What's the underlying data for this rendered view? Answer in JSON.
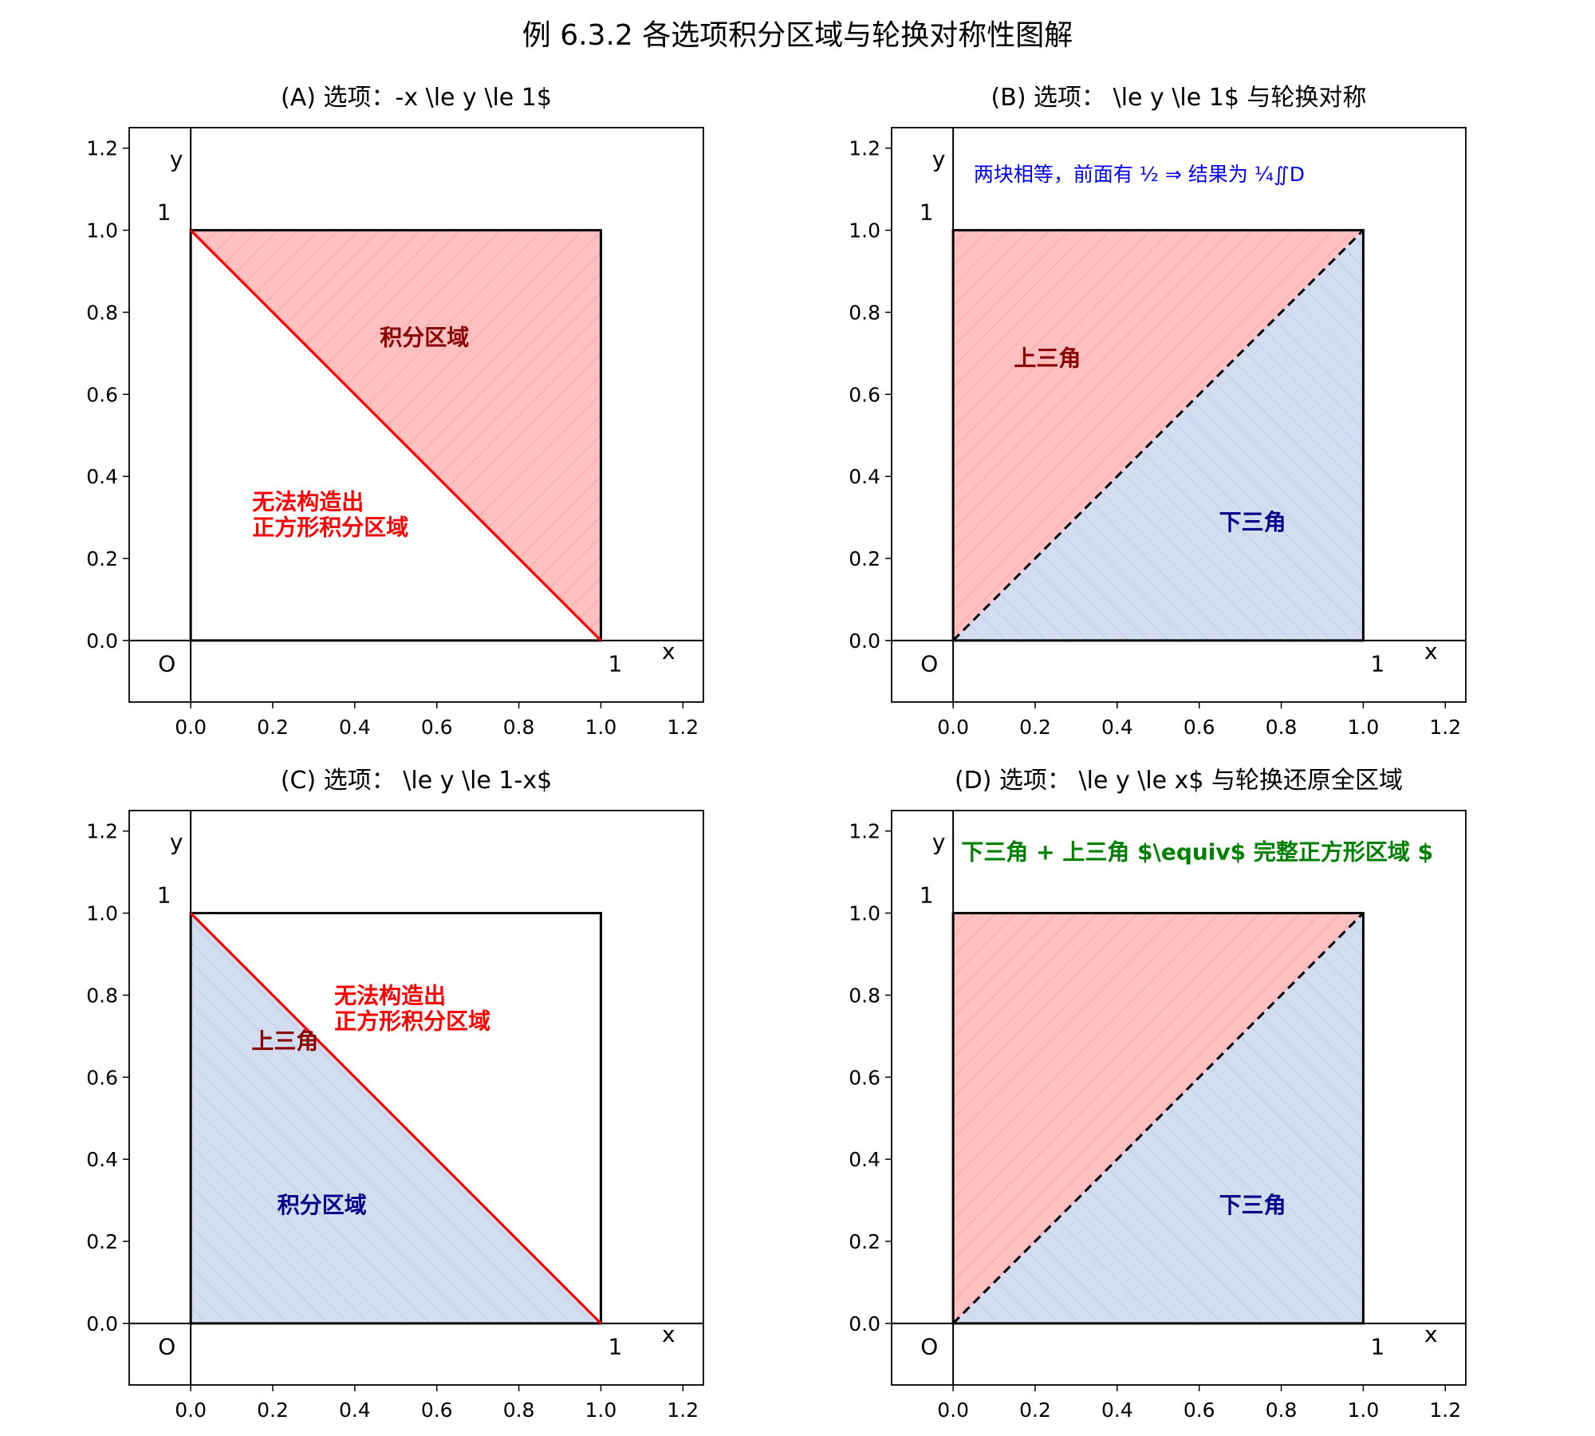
{
  "suptitle": "例 6.3.2 各选项积分区域与轮换对称性图解",
  "colors": {
    "red_fill": "#ffc0c0",
    "red_hatch": "#ff9a9a",
    "blue_fill": "#d2ddf0",
    "blue_hatch": "#b4c8ea",
    "red_line": "#ff0000",
    "black": "#000000",
    "dark_red": "#8b0000",
    "dark_blue": "#00008b",
    "red_text": "#ff0000",
    "blue_text": "#0000ff",
    "green_text": "#008000"
  },
  "chart_data": [
    {
      "id": "A",
      "type": "area",
      "title": "(A) 选项：-x \\le y \\le 1$",
      "xlim": [
        -0.15,
        1.25
      ],
      "ylim": [
        -0.15,
        1.25
      ],
      "xticks": [
        "0.0",
        "0.2",
        "0.4",
        "0.6",
        "0.8",
        "1.0",
        "1.2"
      ],
      "yticks": [
        "0.0",
        "0.2",
        "0.4",
        "0.6",
        "0.8",
        "1.0",
        "1.2"
      ],
      "axis_letters": {
        "x": "x",
        "y": "y",
        "origin": "O",
        "one_x": "1",
        "one_y": "1"
      },
      "regions": [
        {
          "name": "red-region",
          "style": "red",
          "points": [
            [
              0,
              1
            ],
            [
              1,
              1
            ],
            [
              1,
              0
            ]
          ]
        }
      ],
      "square": [
        [
          0,
          0
        ],
        [
          1,
          1
        ]
      ],
      "lines": [
        {
          "name": "antidiagonal-line",
          "style": "red",
          "from": [
            0,
            1
          ],
          "to": [
            1,
            0
          ]
        }
      ],
      "annotations": [
        {
          "text": "积分区域",
          "x": 0.57,
          "y": 0.72,
          "style": "dark_red"
        },
        {
          "lines": [
            "无法构造出",
            "正方形积分区域"
          ],
          "x": 0.15,
          "y": 0.32,
          "style": "red_left"
        }
      ]
    },
    {
      "id": "B",
      "type": "area",
      "title": "(B) 选项：  \\le y \\le 1$ 与轮换对称",
      "xlim": [
        -0.15,
        1.25
      ],
      "ylim": [
        -0.15,
        1.25
      ],
      "xticks": [
        "0.0",
        "0.2",
        "0.4",
        "0.6",
        "0.8",
        "1.0",
        "1.2"
      ],
      "yticks": [
        "0.0",
        "0.2",
        "0.4",
        "0.6",
        "0.8",
        "1.0",
        "1.2"
      ],
      "axis_letters": {
        "x": "x",
        "y": "y",
        "origin": "O",
        "one_x": "1",
        "one_y": "1"
      },
      "regions": [
        {
          "name": "upper-triangle-region",
          "style": "red",
          "points": [
            [
              0,
              0
            ],
            [
              0,
              1
            ],
            [
              1,
              1
            ]
          ]
        },
        {
          "name": "lower-triangle-region",
          "style": "blue",
          "points": [
            [
              0,
              0
            ],
            [
              1,
              0
            ],
            [
              1,
              1
            ]
          ]
        }
      ],
      "square": [
        [
          0,
          0
        ],
        [
          1,
          1
        ]
      ],
      "lines": [
        {
          "name": "diagonal-line",
          "style": "dashed",
          "from": [
            0,
            0
          ],
          "to": [
            1,
            1
          ]
        }
      ],
      "annotations": [
        {
          "text": "上三角",
          "x": 0.23,
          "y": 0.67,
          "style": "dark_red"
        },
        {
          "text": "下三角",
          "x": 0.73,
          "y": 0.27,
          "style": "dark_blue"
        },
        {
          "text": "两块相等，前面有 ½ ⇒ 结果为 ¼∬D",
          "x": 0.05,
          "y": 1.12,
          "style": "blue_left"
        }
      ]
    },
    {
      "id": "C",
      "type": "area",
      "title": "(C) 选项：  \\le y \\le 1-x$",
      "xlim": [
        -0.15,
        1.25
      ],
      "ylim": [
        -0.15,
        1.25
      ],
      "xticks": [
        "0.0",
        "0.2",
        "0.4",
        "0.6",
        "0.8",
        "1.0",
        "1.2"
      ],
      "yticks": [
        "0.0",
        "0.2",
        "0.4",
        "0.6",
        "0.8",
        "1.0",
        "1.2"
      ],
      "axis_letters": {
        "x": "x",
        "y": "y",
        "origin": "O",
        "one_x": "1",
        "one_y": "1"
      },
      "regions": [
        {
          "name": "blue-region",
          "style": "blue",
          "points": [
            [
              0,
              0
            ],
            [
              0,
              1
            ],
            [
              1,
              0
            ]
          ]
        }
      ],
      "square": [
        [
          0,
          0
        ],
        [
          1,
          1
        ]
      ],
      "lines": [
        {
          "name": "antidiagonal-line",
          "style": "red",
          "from": [
            0,
            1
          ],
          "to": [
            1,
            0
          ]
        }
      ],
      "annotations": [
        {
          "text": "积分区域",
          "x": 0.32,
          "y": 0.27,
          "style": "dark_blue"
        },
        {
          "text": "上三角",
          "x": 0.23,
          "y": 0.67,
          "style": "dark_red"
        },
        {
          "lines": [
            "无法构造出",
            "正方形积分区域"
          ],
          "x": 0.35,
          "y": 0.78,
          "style": "red_left"
        }
      ]
    },
    {
      "id": "D",
      "type": "area",
      "title": "(D) 选项：  \\le y \\le x$ 与轮换还原全区域",
      "xlim": [
        -0.15,
        1.25
      ],
      "ylim": [
        -0.15,
        1.25
      ],
      "xticks": [
        "0.0",
        "0.2",
        "0.4",
        "0.6",
        "0.8",
        "1.0",
        "1.2"
      ],
      "yticks": [
        "0.0",
        "0.2",
        "0.4",
        "0.6",
        "0.8",
        "1.0",
        "1.2"
      ],
      "axis_letters": {
        "x": "x",
        "y": "y",
        "origin": "O",
        "one_x": "1",
        "one_y": "1"
      },
      "regions": [
        {
          "name": "upper-triangle-region",
          "style": "red",
          "points": [
            [
              0,
              0
            ],
            [
              0,
              1
            ],
            [
              1,
              1
            ]
          ]
        },
        {
          "name": "lower-triangle-region",
          "style": "blue",
          "points": [
            [
              0,
              0
            ],
            [
              1,
              0
            ],
            [
              1,
              1
            ]
          ]
        }
      ],
      "square": [
        [
          0,
          0
        ],
        [
          1,
          1
        ]
      ],
      "lines": [
        {
          "name": "diagonal-line",
          "style": "dashed",
          "from": [
            0,
            0
          ],
          "to": [
            1,
            1
          ]
        }
      ],
      "annotations": [
        {
          "text": "下三角",
          "x": 0.73,
          "y": 0.27,
          "style": "dark_blue"
        },
        {
          "text": "下三角 + 上三角 $\\equiv$ 完整正方形区域 $",
          "x": 0.02,
          "y": 1.13,
          "style": "green_left"
        }
      ]
    }
  ]
}
